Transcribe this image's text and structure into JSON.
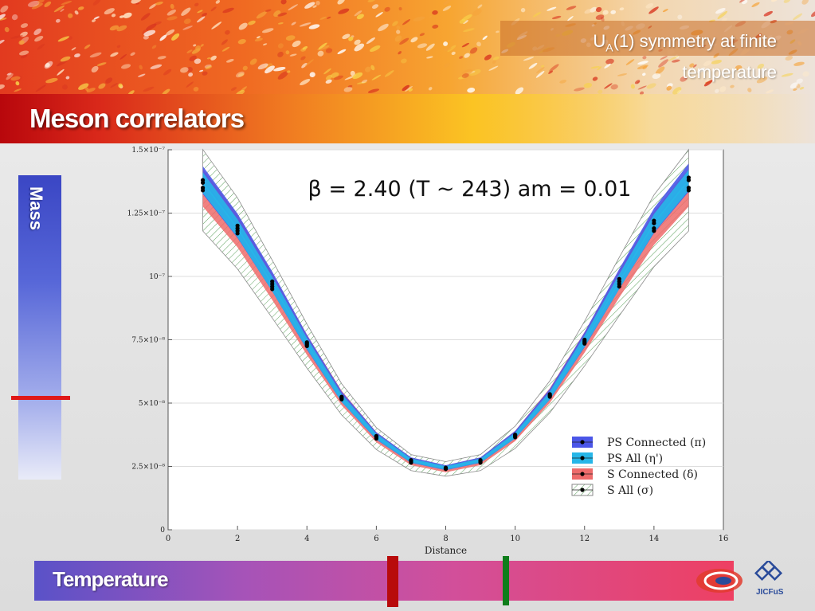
{
  "slide": {
    "title": "Meson correlators",
    "topic_main": "U",
    "topic_sub": "A",
    "topic_rest": "(1) symmetry at finite",
    "topic_line2": "temperature",
    "mass_label": "Mass",
    "temperature_label": "Temperature",
    "logo_text": "JICFuS"
  },
  "colors": {
    "ps_connected": "#4b56e8",
    "ps_all": "#27b6e8",
    "s_connected": "#ee6b6b",
    "s_all_band": "#2f8a3a",
    "mass_marker": "#e01818",
    "temp_marker_red": "#b80b0b",
    "temp_marker_green": "#0f7d1b"
  },
  "chart_data": {
    "type": "line",
    "title": "β = 2.40 (T ~ 243) am = 0.01",
    "xlabel": "Distance",
    "ylabel": "",
    "xlim": [
      0,
      16
    ],
    "ylim": [
      0,
      1.5e-07
    ],
    "x_ticks": [
      0,
      2,
      4,
      6,
      8,
      10,
      12,
      14,
      16
    ],
    "y_ticks": [
      {
        "value": 0,
        "label": "0"
      },
      {
        "value": 2.5e-08,
        "label": "2.5×10⁻⁸"
      },
      {
        "value": 5e-08,
        "label": "5×10⁻⁸"
      },
      {
        "value": 7.5e-08,
        "label": "7.5×10⁻⁸"
      },
      {
        "value": 1e-07,
        "label": "10⁻⁷"
      },
      {
        "value": 1.25e-07,
        "label": "1.25×10⁻⁷"
      },
      {
        "value": 1.5e-07,
        "label": "1.5×10⁻⁷"
      }
    ],
    "grid": "horizontal",
    "legend_position": "bottom-right",
    "x": [
      1,
      2,
      3,
      4,
      5,
      6,
      7,
      8,
      9,
      10,
      11,
      12,
      13,
      14,
      15
    ],
    "series": [
      {
        "name": "PS Connected (π)",
        "color": "#4b56e8",
        "values": [
          1.38e-07,
          1.2e-07,
          9.8e-08,
          7.4e-08,
          5.25e-08,
          3.7e-08,
          2.75e-08,
          2.45e-08,
          2.75e-08,
          3.75e-08,
          5.35e-08,
          7.5e-08,
          9.9e-08,
          1.22e-07,
          1.39e-07
        ],
        "band": 0.04
      },
      {
        "name": "PS All (η')",
        "color": "#27b6e8",
        "values": [
          1.37e-07,
          1.19e-07,
          9.7e-08,
          7.35e-08,
          5.2e-08,
          3.68e-08,
          2.73e-08,
          2.44e-08,
          2.73e-08,
          3.72e-08,
          5.3e-08,
          7.45e-08,
          9.8e-08,
          1.21e-07,
          1.38e-07
        ],
        "band": 0.03
      },
      {
        "name": "S Connected (δ)",
        "color": "#ee6b6b",
        "values": [
          1.35e-07,
          1.18e-07,
          9.6e-08,
          7.3e-08,
          5.2e-08,
          3.65e-08,
          2.7e-08,
          2.4e-08,
          2.7e-08,
          3.7e-08,
          5.3e-08,
          7.4e-08,
          9.7e-08,
          1.19e-07,
          1.35e-07
        ],
        "band": 0.055
      },
      {
        "name": "S All (σ)",
        "color": "#2f8a3a",
        "values": [
          1.34e-07,
          1.17e-07,
          9.5e-08,
          7.25e-08,
          5.15e-08,
          3.6e-08,
          2.65e-08,
          2.4e-08,
          2.65e-08,
          3.65e-08,
          5.25e-08,
          7.35e-08,
          9.6e-08,
          1.18e-07,
          1.34e-07
        ],
        "band": 0.12
      }
    ]
  }
}
